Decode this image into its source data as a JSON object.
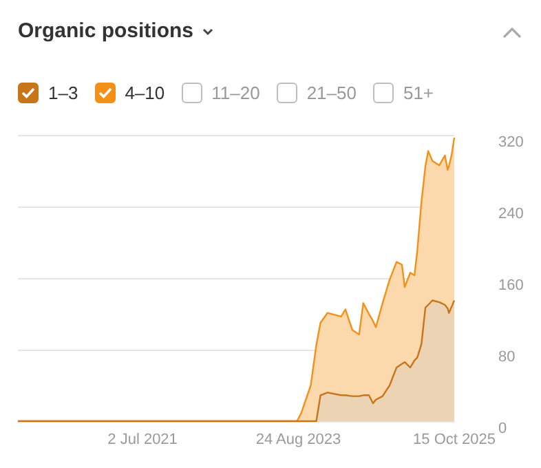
{
  "chart_data": {
    "type": "area",
    "title": "Organic positions",
    "stacked": true,
    "legend": "top left",
    "grid": "y",
    "x": [
      "2019-10-15",
      "2023-08-17",
      "2023-09-07",
      "2023-10-25",
      "2023-11-22",
      "2023-12-13",
      "2024-01-17",
      "2024-03-26",
      "2024-04-16",
      "2024-05-21",
      "2024-06-24",
      "2024-07-15",
      "2024-08-12",
      "2024-09-02",
      "2024-09-16",
      "2024-10-20",
      "2024-11-24",
      "2024-12-29",
      "2025-01-25",
      "2025-02-08",
      "2025-03-08",
      "2025-03-29",
      "2025-04-12",
      "2025-05-03",
      "2025-05-23",
      "2025-06-06",
      "2025-06-27",
      "2025-08-01",
      "2025-08-29",
      "2025-09-12",
      "2025-09-18",
      "2025-10-02",
      "2025-10-15"
    ],
    "series": [
      {
        "name": "1–3",
        "color": "#c8751a",
        "values": [
          0,
          0,
          0,
          0,
          0,
          29,
          32,
          29,
          29,
          28,
          28,
          29,
          29,
          20,
          24,
          28,
          40,
          60,
          64,
          66,
          60,
          68,
          71,
          86,
          127,
          130,
          135,
          133,
          130,
          126,
          121,
          128,
          135
        ]
      },
      {
        "name": "4–10",
        "color": "#f39018",
        "values": [
          0,
          0,
          9,
          40,
          85,
          81,
          89,
          88,
          96,
          74,
          69,
          103,
          91,
          92,
          81,
          104,
          118,
          118,
          111,
          84,
          106,
          95,
          119,
          159,
          158,
          172,
          156,
          153,
          167,
          155,
          164,
          170,
          182
        ]
      },
      {
        "name": "11–20",
        "color": "#bdbdbd",
        "values": [
          null,
          null,
          null,
          null,
          null,
          null,
          null,
          null,
          null,
          null,
          null,
          null,
          null,
          null,
          null,
          null,
          null,
          null,
          null,
          null,
          null,
          null,
          null,
          null,
          null,
          null,
          null,
          null,
          null,
          null,
          null,
          null,
          null
        ]
      },
      {
        "name": "21–50",
        "color": "#bdbdbd",
        "values": [
          null,
          null,
          null,
          null,
          null,
          null,
          null,
          null,
          null,
          null,
          null,
          null,
          null,
          null,
          null,
          null,
          null,
          null,
          null,
          null,
          null,
          null,
          null,
          null,
          null,
          null,
          null,
          null,
          null,
          null,
          null,
          null,
          null
        ]
      },
      {
        "name": "51+",
        "color": "#bdbdbd",
        "values": [
          null,
          null,
          null,
          null,
          null,
          null,
          null,
          null,
          null,
          null,
          null,
          null,
          null,
          null,
          null,
          null,
          null,
          null,
          null,
          null,
          null,
          null,
          null,
          null,
          null,
          null,
          null,
          null,
          null,
          null,
          null,
          null,
          null
        ]
      }
    ],
    "xlim": [
      "2019-10-15",
      "2025-10-15"
    ],
    "xticks": [
      {
        "value": "2021-07-02",
        "label": "2 Jul 2021"
      },
      {
        "value": "2023-08-24",
        "label": "24 Aug 2023"
      },
      {
        "value": "2025-10-15",
        "label": "15 Oct 2025"
      }
    ],
    "ylim": [
      0,
      320
    ],
    "yticks": [
      0,
      80,
      160,
      240,
      320
    ]
  }
}
